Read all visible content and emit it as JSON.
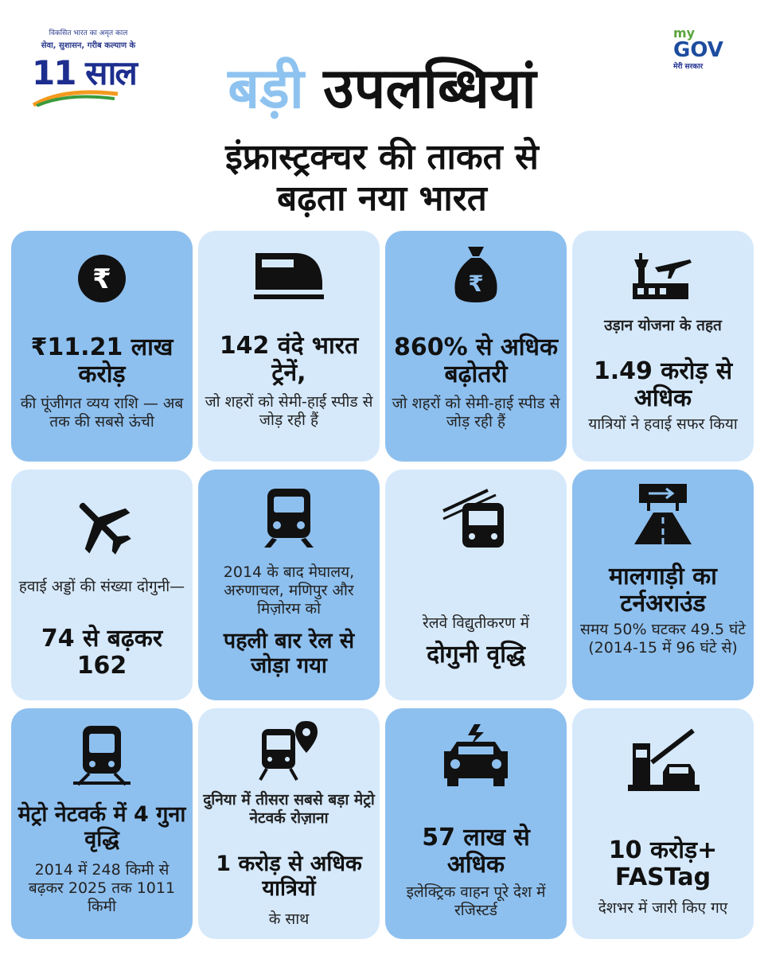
{
  "header": {
    "logo_left": {
      "tagline_1": "विकसित भारत का अमृत काल",
      "tagline_2": "सेवा, सुशासन, गरीब कल्याण के",
      "number": "11",
      "word": "साल"
    },
    "logo_right": {
      "my": "my",
      "gov": "GOV",
      "subtitle": "मेरी सरकार"
    },
    "title_part1": "बड़ी",
    "title_part2": "उपलब्धियां",
    "subtitle_line1": "इंफ्रास्ट्रक्चर की ताकत से",
    "subtitle_line2": "बढ़ता नया भारत"
  },
  "cards": [
    {
      "icon": "rupee-circle-icon",
      "pre": "",
      "highlight": "₹11.21 लाख करोड़",
      "post": "की पूंजीगत व्यय राशि — अब तक की सबसे ऊंची"
    },
    {
      "icon": "bullet-train-icon",
      "pre": "",
      "highlight": "142 वंदे भारत ट्रेनें,",
      "post": "जो शहरों को सेमी-हाई स्पीड से जोड़ रही हैं"
    },
    {
      "icon": "money-bag-icon",
      "pre": "",
      "highlight": "860% से अधिक बढ़ोतरी",
      "post": "जो शहरों को सेमी-हाई स्पीड से जोड़ रही हैं"
    },
    {
      "icon": "airport-tower-icon",
      "pre": "उड़ान योजना के तहत",
      "highlight": "1.49 करोड़ से अधिक",
      "post": "यात्रियों ने हवाई सफर किया"
    },
    {
      "icon": "airplane-icon",
      "pre": "हवाई अड्डों की संख्या दोगुनी—",
      "highlight": "74 से बढ़कर 162",
      "post": ""
    },
    {
      "icon": "train-front-icon",
      "pre": "2014 के बाद मेघालय, अरुणाचल, मणिपुर और मिज़ोरम को",
      "highlight": "पहली बार रेल से जोड़ा गया",
      "post": ""
    },
    {
      "icon": "electric-train-icon",
      "pre": "रेलवे विद्युतीकरण में",
      "highlight": "दोगुनी वृद्धि",
      "post": ""
    },
    {
      "icon": "highway-icon",
      "pre": "",
      "highlight": "मालगाड़ी का टर्नअराउंड",
      "post": "समय 50% घटकर 49.5 घंटे (2014-15 में 96 घंटे से)"
    },
    {
      "icon": "metro-train-icon",
      "pre": "",
      "highlight": "मेट्रो नेटवर्क में 4 गुना वृद्धि",
      "post": "2014 में 248 किमी से बढ़कर 2025 तक 1011 किमी"
    },
    {
      "icon": "metro-location-icon",
      "pre": "दुनिया में तीसरा सबसे बड़ा मेट्रो नेटवर्क रोज़ाना",
      "highlight": "1 करोड़ से अधिक यात्रियों",
      "post": "के साथ"
    },
    {
      "icon": "electric-car-icon",
      "pre": "",
      "highlight": "57 लाख से अधिक",
      "post": "इलेक्ट्रिक वाहन पूरे देश में रजिस्टर्ड"
    },
    {
      "icon": "toll-gate-icon",
      "pre": "",
      "highlight": "10 करोड़+ FASTag",
      "post": "देशभर में जारी किए गए"
    }
  ]
}
